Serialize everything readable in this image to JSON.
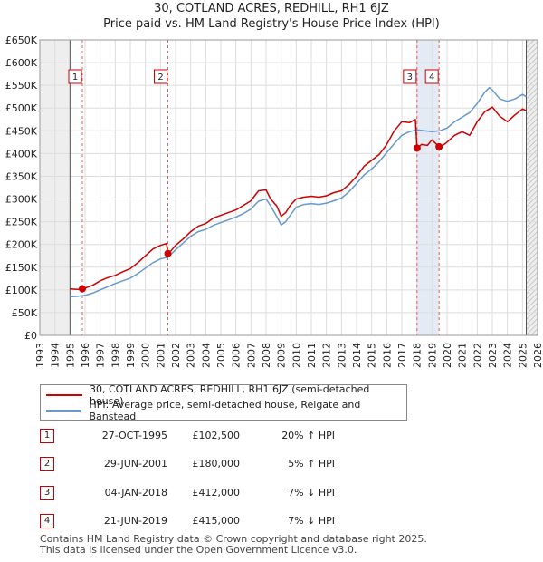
{
  "title_line1": "30, COTLAND ACRES, REDHILL, RH1 6JZ",
  "title_line2": "Price paid vs. HM Land Registry's House Price Index (HPI)",
  "colors": {
    "property": "#cc0000",
    "hpi": "#6699cc",
    "marker": "#cc0000"
  },
  "legend": {
    "property": "30, COTLAND ACRES, REDHILL, RH1 6JZ (semi-detached house)",
    "hpi": "HPI: Average price, semi-detached house, Reigate and Banstead"
  },
  "sales": [
    {
      "num": "1",
      "date": "27-OCT-1995",
      "price": "£102,500",
      "hpi": "20% ↑ HPI"
    },
    {
      "num": "2",
      "date": "29-JUN-2001",
      "price": "£180,000",
      "hpi": "5% ↑ HPI"
    },
    {
      "num": "3",
      "date": "04-JAN-2018",
      "price": "£412,000",
      "hpi": "7% ↓ HPI"
    },
    {
      "num": "4",
      "date": "21-JUN-2019",
      "price": "£415,000",
      "hpi": "7% ↓ HPI"
    }
  ],
  "footer": {
    "line1": "Contains HM Land Registry data © Crown copyright and database right 2025.",
    "line2": "This data is licensed under the Open Government Licence v3.0."
  },
  "chart_data": {
    "type": "line",
    "title": "30, COTLAND ACRES, REDHILL, RH1 6JZ",
    "subtitle": "Price paid vs. HM Land Registry's House Price Index (HPI)",
    "xlabel": "",
    "ylabel": "",
    "xlim": [
      1993,
      2026
    ],
    "ylim": [
      0,
      650000
    ],
    "grid": true,
    "x_ticks": [
      1993,
      1994,
      1995,
      1996,
      1997,
      1998,
      1999,
      2000,
      2001,
      2002,
      2003,
      2004,
      2005,
      2006,
      2007,
      2008,
      2009,
      2010,
      2011,
      2012,
      2013,
      2014,
      2015,
      2016,
      2017,
      2018,
      2019,
      2020,
      2021,
      2022,
      2023,
      2024,
      2025,
      2026
    ],
    "y_ticks": [
      {
        "value": 0,
        "label": "£0"
      },
      {
        "value": 50000,
        "label": "£50K"
      },
      {
        "value": 100000,
        "label": "£100K"
      },
      {
        "value": 150000,
        "label": "£150K"
      },
      {
        "value": 200000,
        "label": "£200K"
      },
      {
        "value": 250000,
        "label": "£250K"
      },
      {
        "value": 300000,
        "label": "£300K"
      },
      {
        "value": 350000,
        "label": "£350K"
      },
      {
        "value": 400000,
        "label": "£400K"
      },
      {
        "value": 450000,
        "label": "£450K"
      },
      {
        "value": 500000,
        "label": "£500K"
      },
      {
        "value": 550000,
        "label": "£550K"
      },
      {
        "value": 600000,
        "label": "£600K"
      },
      {
        "value": 650000,
        "label": "£650K"
      }
    ],
    "data_range": [
      1995.0,
      2025.25
    ],
    "series": [
      {
        "name": "30, COTLAND ACRES, REDHILL, RH1 6JZ (semi-detached house)",
        "x": [
          1995.0,
          1995.5,
          1995.82,
          1996.0,
          1996.5,
          1997.0,
          1997.5,
          1998.0,
          1998.5,
          1999.0,
          1999.5,
          2000.0,
          2000.5,
          2001.0,
          2001.4,
          2001.49,
          2001.6,
          2002.0,
          2002.5,
          2003.0,
          2003.5,
          2004.0,
          2004.5,
          2005.0,
          2005.5,
          2006.0,
          2006.5,
          2007.0,
          2007.5,
          2008.0,
          2008.3,
          2008.7,
          2009.0,
          2009.3,
          2009.6,
          2010.0,
          2010.5,
          2011.0,
          2011.5,
          2012.0,
          2012.5,
          2013.0,
          2013.5,
          2014.0,
          2014.5,
          2015.0,
          2015.5,
          2016.0,
          2016.5,
          2017.0,
          2017.5,
          2017.9,
          2018.01,
          2018.3,
          2018.7,
          2019.0,
          2019.47,
          2019.8,
          2020.0,
          2020.5,
          2021.0,
          2021.5,
          2022.0,
          2022.5,
          2022.8,
          2023.0,
          2023.5,
          2024.0,
          2024.5,
          2025.0,
          2025.25
        ],
        "values": [
          102000,
          101000,
          102500,
          104000,
          110000,
          120000,
          127000,
          132000,
          140000,
          147000,
          160000,
          175000,
          190000,
          198000,
          202000,
          180000,
          182000,
          198000,
          212000,
          228000,
          240000,
          246000,
          258000,
          264000,
          270000,
          276000,
          286000,
          296000,
          318000,
          320000,
          300000,
          285000,
          262000,
          270000,
          286000,
          300000,
          304000,
          306000,
          304000,
          307000,
          314000,
          318000,
          332000,
          350000,
          372000,
          385000,
          398000,
          420000,
          450000,
          470000,
          468000,
          475000,
          412000,
          420000,
          418000,
          430000,
          415000,
          420000,
          425000,
          440000,
          448000,
          440000,
          470000,
          492000,
          498000,
          502000,
          482000,
          470000,
          485000,
          498000,
          494000
        ]
      },
      {
        "name": "HPI: Average price, semi-detached house, Reigate and Banstead",
        "x": [
          1995.0,
          1995.5,
          1996.0,
          1996.5,
          1997.0,
          1997.5,
          1998.0,
          1998.5,
          1999.0,
          1999.5,
          2000.0,
          2000.5,
          2001.0,
          2001.5,
          2002.0,
          2002.5,
          2003.0,
          2003.5,
          2004.0,
          2004.5,
          2005.0,
          2005.5,
          2006.0,
          2006.5,
          2007.0,
          2007.5,
          2008.0,
          2008.3,
          2008.7,
          2009.0,
          2009.3,
          2009.6,
          2010.0,
          2010.5,
          2011.0,
          2011.5,
          2012.0,
          2012.5,
          2013.0,
          2013.5,
          2014.0,
          2014.5,
          2015.0,
          2015.5,
          2016.0,
          2016.5,
          2017.0,
          2017.5,
          2018.0,
          2018.5,
          2019.0,
          2019.5,
          2020.0,
          2020.5,
          2021.0,
          2021.5,
          2022.0,
          2022.5,
          2022.8,
          2023.0,
          2023.5,
          2024.0,
          2024.5,
          2025.0,
          2025.25
        ],
        "values": [
          85000,
          86000,
          88000,
          93000,
          100000,
          107000,
          114000,
          120000,
          126000,
          136000,
          148000,
          160000,
          168000,
          172000,
          188000,
          203000,
          218000,
          228000,
          233000,
          242000,
          248000,
          254000,
          260000,
          268000,
          278000,
          295000,
          300000,
          285000,
          262000,
          243000,
          250000,
          264000,
          282000,
          288000,
          290000,
          288000,
          291000,
          296000,
          302000,
          316000,
          334000,
          353000,
          366000,
          382000,
          402000,
          422000,
          440000,
          448000,
          452000,
          450000,
          448000,
          450000,
          456000,
          470000,
          480000,
          490000,
          510000,
          535000,
          545000,
          540000,
          520000,
          515000,
          520000,
          530000,
          525000
        ]
      }
    ],
    "sales_markers": [
      {
        "label": "1",
        "x": 1995.82,
        "value": 102500
      },
      {
        "label": "2",
        "x": 2001.49,
        "value": 180000
      },
      {
        "label": "3",
        "x": 2018.01,
        "value": 412000
      },
      {
        "label": "4",
        "x": 2019.47,
        "value": 415000
      }
    ],
    "highlight_ranges": [
      {
        "from": 2018.01,
        "to": 2019.47
      }
    ]
  }
}
